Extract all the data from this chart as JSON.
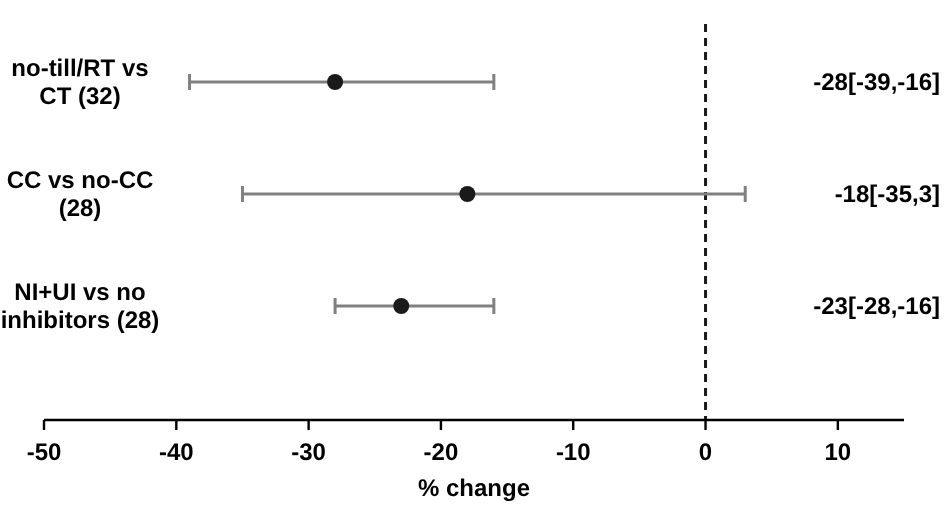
{
  "chart_data": {
    "type": "scatter",
    "orientation": "horizontal",
    "xlabel": "% change",
    "categories": [
      "no-till/RT vs CT (32)",
      "CC vs no-CC (28)",
      "NI+UI vs no inhibitors (28)"
    ],
    "values": [
      -28,
      -18,
      -23
    ],
    "errors": [
      [
        -39,
        -16
      ],
      [
        -35,
        3
      ],
      [
        -28,
        -16
      ]
    ],
    "annotations": [
      "-28[-39,-16]",
      "-18[-35,3]",
      "-23[-28,-16]"
    ],
    "color": "#1a1a1a",
    "marker": "circle",
    "xlim": [
      -50,
      15
    ],
    "xticks": [
      -50,
      -40,
      -30,
      -20,
      -10,
      0,
      10
    ],
    "ref_lines": [
      {
        "axis": "x",
        "value": 0,
        "line_style": "dashed",
        "color": "#1a1a1a"
      }
    ],
    "grid": false
  }
}
